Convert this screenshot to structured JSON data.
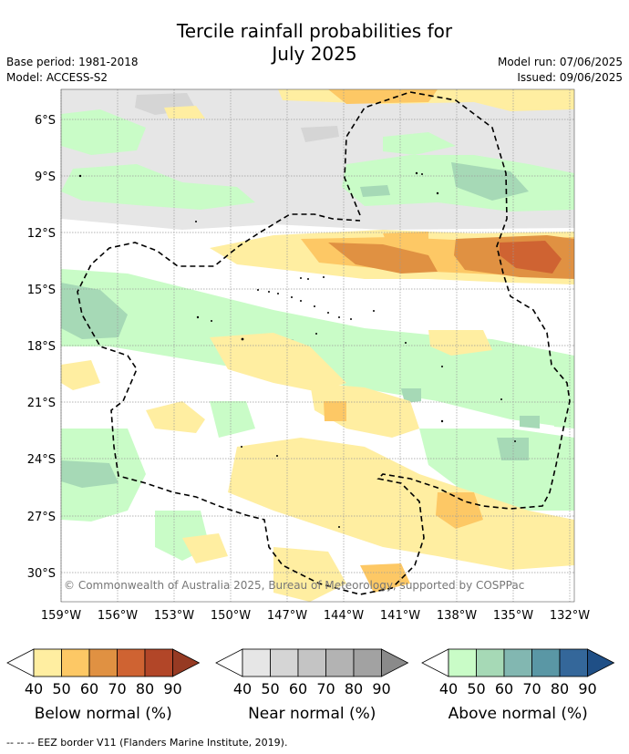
{
  "title_line1": "Tercile rainfall probabilities for",
  "title_line2": "July 2025",
  "meta_left": {
    "base_period": "Base period: 1981-2018",
    "model": "Model: ACCESS-S2"
  },
  "meta_right": {
    "model_run": "Model run: 07/06/2025",
    "issued": "Issued: 09/06/2025"
  },
  "lat_labels": [
    "6°S",
    "9°S",
    "12°S",
    "15°S",
    "18°S",
    "21°S",
    "24°S",
    "27°S",
    "30°S"
  ],
  "lon_labels": [
    "159°W",
    "156°W",
    "153°W",
    "150°W",
    "147°W",
    "144°W",
    "141°W",
    "138°W",
    "135°W",
    "132°W"
  ],
  "copyright": "© Commonwealth of Australia 2025, Bureau of Meteorology, supported by COSPPac",
  "colorbars": [
    {
      "name": "Below normal (%)",
      "ticks": [
        "40",
        "50",
        "60",
        "70",
        "80",
        "90"
      ],
      "colors": [
        "#ffeea1",
        "#fdc865",
        "#e09142",
        "#cf6332",
        "#b24628",
        "#963a23"
      ]
    },
    {
      "name": "Near normal (%)",
      "ticks": [
        "40",
        "50",
        "60",
        "70",
        "80",
        "90"
      ],
      "colors": [
        "#e6e6e6",
        "#d5d5d5",
        "#c4c4c4",
        "#b3b3b3",
        "#a2a2a2",
        "#8a8a8a"
      ]
    },
    {
      "name": "Above normal (%)",
      "ticks": [
        "40",
        "50",
        "60",
        "70",
        "80",
        "90"
      ],
      "colors": [
        "#c9fcc7",
        "#a6d9b6",
        "#82b7b1",
        "#5a97a5",
        "#34679a",
        "#1f4f86"
      ]
    }
  ],
  "footer": "--  --  -- EEZ border V11 (Flanders Marine Institute, 2019)."
}
